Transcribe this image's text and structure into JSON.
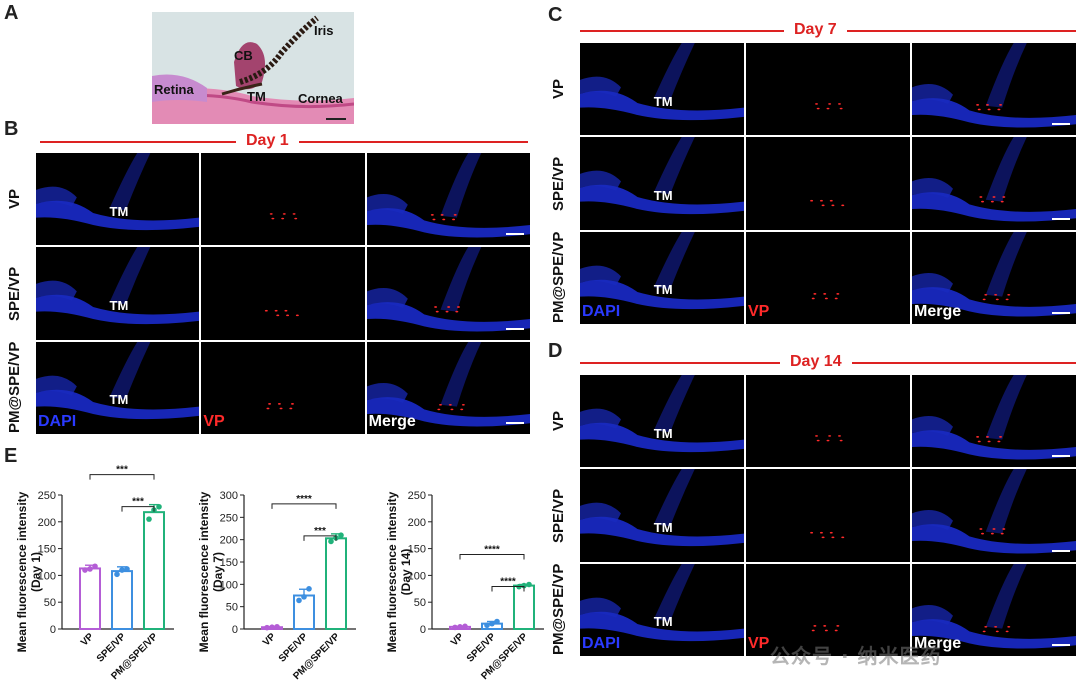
{
  "panels": {
    "A": "A",
    "B": "B",
    "C": "C",
    "D": "D",
    "E": "E"
  },
  "histology": {
    "iris": "Iris",
    "cb": "CB",
    "retina": "Retina",
    "tm": "TM",
    "cornea": "Cornea"
  },
  "days": {
    "b": "Day 1",
    "c": "Day 7",
    "d": "Day 14"
  },
  "rows": [
    "VP",
    "SPE/VP",
    "PM@SPE/VP"
  ],
  "tm": "TM",
  "stains": {
    "dapi": "DAPI",
    "vp": "VP",
    "merge": "Merge"
  },
  "watermark": "公众号 · 纳米医药",
  "chart_data": [
    {
      "type": "bar",
      "categories": [
        "VP",
        "SPE/VP",
        "PM@SPE/VP"
      ],
      "values": [
        113,
        108,
        218
      ],
      "errors": [
        6,
        8,
        14
      ],
      "points": [
        [
          110,
          112,
          117
        ],
        [
          102,
          110,
          112
        ],
        [
          205,
          222,
          228
        ]
      ],
      "ylabel": "Mean fluorescence intensity (Day 1)",
      "ylim": [
        0,
        250
      ],
      "yticks": [
        0,
        50,
        100,
        150,
        200,
        250
      ],
      "significance": [
        {
          "from": 0,
          "to": 2,
          "label": "***"
        },
        {
          "from": 1,
          "to": 2,
          "label": "***"
        }
      ]
    },
    {
      "type": "bar",
      "categories": [
        "VP",
        "SPE/VP",
        "PM@SPE/VP"
      ],
      "values": [
        4,
        75,
        203
      ],
      "errors": [
        1,
        14,
        10
      ],
      "points": [
        [
          3,
          4,
          5
        ],
        [
          64,
          72,
          90
        ],
        [
          196,
          204,
          210
        ]
      ],
      "ylabel": "Mean fluorescence intensity (Day 7)",
      "ylim": [
        0,
        300
      ],
      "yticks": [
        0,
        50,
        100,
        150,
        200,
        250,
        300
      ],
      "significance": [
        {
          "from": 0,
          "to": 2,
          "label": "****"
        },
        {
          "from": 1,
          "to": 2,
          "label": "***"
        }
      ]
    },
    {
      "type": "bar",
      "categories": [
        "VP",
        "SPE/VP",
        "PM@SPE/VP"
      ],
      "values": [
        4,
        10,
        81
      ],
      "errors": [
        1,
        4,
        2
      ],
      "points": [
        [
          3,
          4,
          5
        ],
        [
          7,
          10,
          14
        ],
        [
          79,
          81,
          83
        ]
      ],
      "ylabel": "Mean fluorescence intensity (Day 14)",
      "ylim": [
        0,
        250
      ],
      "yticks": [
        0,
        50,
        100,
        150,
        200,
        250
      ],
      "significance": [
        {
          "from": 0,
          "to": 2,
          "label": "****"
        },
        {
          "from": 1,
          "to": 2,
          "label": "****"
        }
      ]
    }
  ],
  "colors": {
    "c1": "#b45dd6",
    "c2": "#3d8fe0",
    "c3": "#20b27a",
    "red": "#d22222"
  }
}
